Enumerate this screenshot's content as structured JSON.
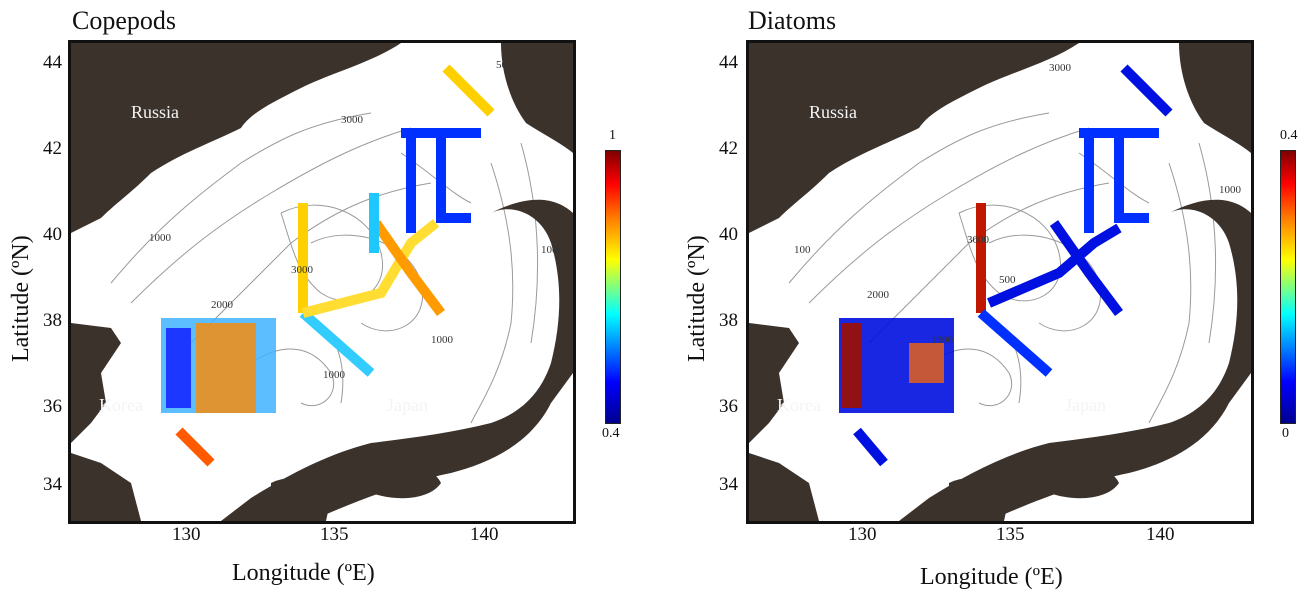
{
  "panels": [
    {
      "title": "Copepods",
      "xlabel": "Longitude (ºE)",
      "ylabel": "Latitude (ºN)",
      "xticks": [
        "130",
        "135",
        "140"
      ],
      "yticks": [
        "44",
        "42",
        "40",
        "38",
        "36",
        "34"
      ],
      "places": {
        "russia": "Russia",
        "korea": "Korea",
        "japan": "Japan"
      },
      "contour_labels": [
        "1000",
        "3000",
        "2000",
        "1000",
        "1000",
        "3000",
        "500",
        "1000"
      ],
      "colorbar": {
        "max": "1",
        "min": "0.4",
        "colors": [
          "#00008f",
          "#0000ff",
          "#00ffff",
          "#ffff00",
          "#ff7f00",
          "#ff0000",
          "#7f0000"
        ]
      }
    },
    {
      "title": "Diatoms",
      "xlabel": "Longitude (ºE)",
      "ylabel": "Latitude (ºN)",
      "xticks": [
        "130",
        "135",
        "140"
      ],
      "yticks": [
        "44",
        "42",
        "40",
        "38",
        "36",
        "34"
      ],
      "places": {
        "russia": "Russia",
        "korea": "Korea",
        "japan": "Japan"
      },
      "contour_labels": [
        "3000",
        "100",
        "3000",
        "2000",
        "1000",
        "500",
        "1000"
      ],
      "colorbar": {
        "max": "0.4",
        "min": "0",
        "colors": [
          "#00008f",
          "#0000ff",
          "#00ffff",
          "#ffff00",
          "#ff7f00",
          "#ff0000",
          "#7f0000"
        ]
      }
    }
  ],
  "land_color": "#3b322c",
  "contour_color": "#9a9a9a"
}
